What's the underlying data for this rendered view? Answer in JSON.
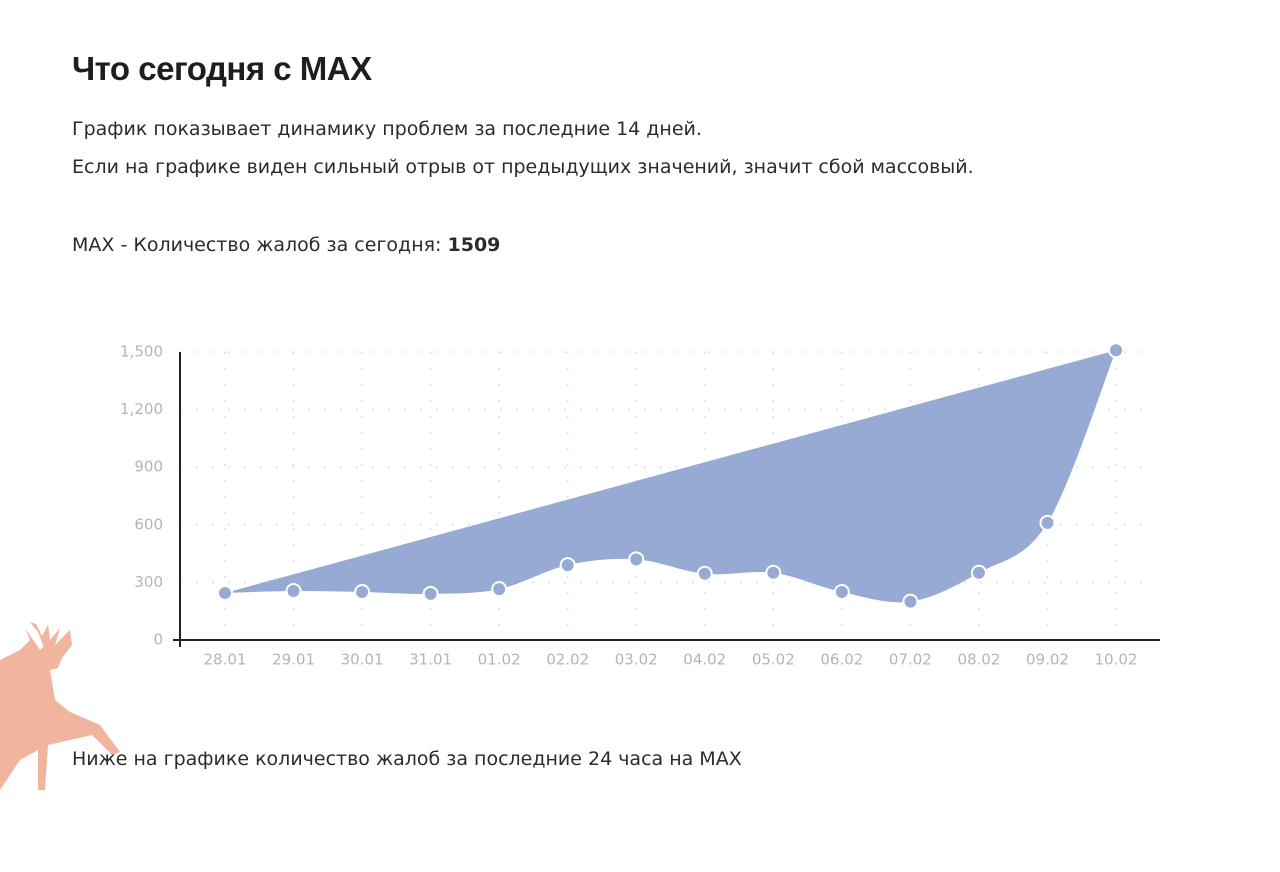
{
  "header": {
    "title": "Что сегодня с MAX",
    "lines": [
      "График показывает динамику проблем за последние 14 дней.",
      "Если на графике виден сильный отрыв от предыдущих значений, значит сбой массовый."
    ],
    "today_label": "MAX - Количество жалоб за сегодня:",
    "today_value": 1509
  },
  "chart_data": {
    "type": "area",
    "categories": [
      "28.01",
      "29.01",
      "30.01",
      "31.01",
      "01.02",
      "02.02",
      "03.02",
      "04.02",
      "05.02",
      "06.02",
      "07.02",
      "08.02",
      "09.02",
      "10.02"
    ],
    "values": [
      245,
      255,
      250,
      240,
      265,
      390,
      420,
      345,
      350,
      250,
      200,
      350,
      610,
      1509
    ],
    "color": "#97aad4",
    "ylim": [
      0,
      1500
    ],
    "yticks": [
      0,
      300,
      600,
      900,
      {
        "value": 1200,
        "label": "1,200"
      },
      {
        "value": 1500,
        "label": "1,500"
      }
    ],
    "grid": true
  },
  "footer": {
    "text": "Ниже на графике количество жалоб за последние 24 часа на MAX"
  }
}
